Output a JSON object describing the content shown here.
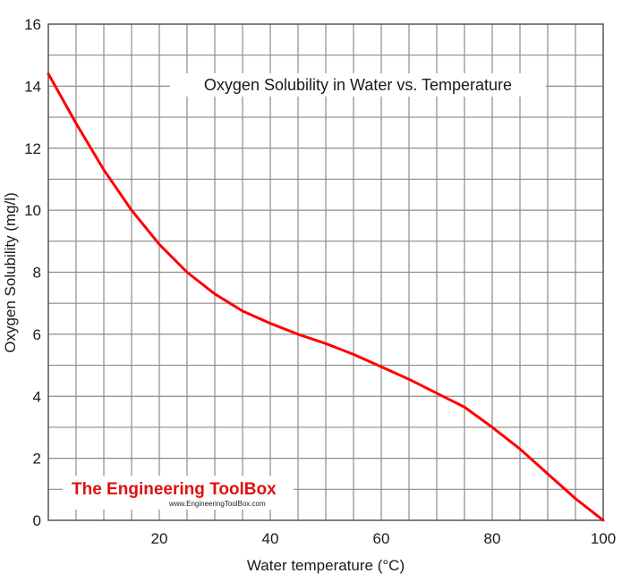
{
  "chart_data": {
    "type": "line",
    "title": "Oxygen Solubility in Water vs. Temperature",
    "xlabel": "Water temperature (°C)",
    "ylabel": "Oxygen Solubility (mg/l)",
    "xlim": [
      0,
      100
    ],
    "ylim": [
      0,
      16
    ],
    "x_ticks": [
      20,
      40,
      60,
      80,
      100
    ],
    "y_ticks": [
      0,
      2,
      4,
      6,
      8,
      10,
      12,
      14,
      16
    ],
    "x_grid_step": 5,
    "y_grid_step": 1,
    "grid": true,
    "series": [
      {
        "name": "Oxygen solubility",
        "color": "#ff0000",
        "x": [
          0,
          5,
          10,
          15,
          20,
          25,
          30,
          35,
          40,
          45,
          50,
          55,
          60,
          65,
          70,
          75,
          80,
          85,
          90,
          95,
          100
        ],
        "y": [
          14.4,
          12.8,
          11.3,
          10.0,
          8.9,
          8.0,
          7.3,
          6.75,
          6.35,
          6.0,
          5.7,
          5.35,
          4.95,
          4.55,
          4.1,
          3.65,
          3.0,
          2.3,
          1.5,
          0.7,
          0.0
        ]
      }
    ]
  },
  "watermark": {
    "brand": "The Engineering ToolBox",
    "url": "www.EngineeringToolBox.com",
    "brand_color": "#e01010"
  }
}
